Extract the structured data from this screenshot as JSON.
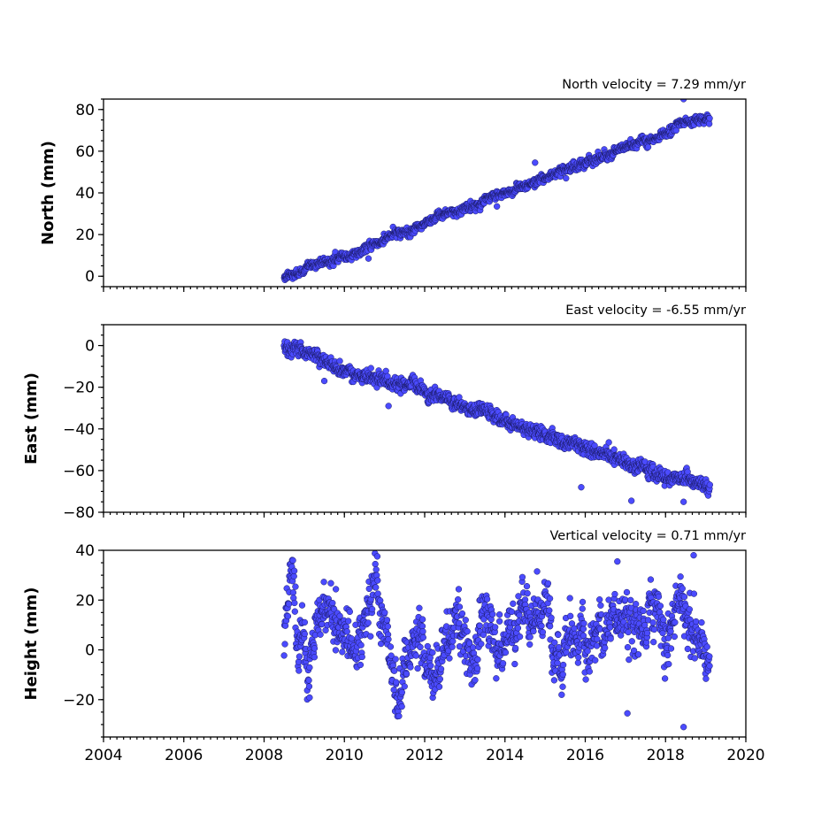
{
  "chart_data": [
    {
      "type": "scatter",
      "title": "North velocity = 7.29 mm/yr",
      "ylabel": "North (mm)",
      "xlim": [
        2004,
        2020
      ],
      "ylim": [
        -5,
        85
      ],
      "yticks": [
        0,
        20,
        40,
        60,
        80
      ],
      "ytick_labels": [
        "0",
        "20",
        "40",
        "60",
        "80"
      ],
      "grid": false,
      "marker_color": "#4b4bff",
      "series": [
        {
          "trend": {
            "x0": 2008.5,
            "y0": -0.5,
            "slope": 7.29
          },
          "x_range": [
            2008.5,
            2019.1
          ],
          "noise_sd": 1.4,
          "outliers": [
            [
              2018.45,
              85
            ],
            [
              2014.75,
              54.5
            ],
            [
              2013.8,
              33.5
            ],
            [
              2010.6,
              8.5
            ]
          ]
        }
      ]
    },
    {
      "type": "scatter",
      "title": "East velocity = -6.55 mm/yr",
      "ylabel": "East (mm)",
      "xlim": [
        2004,
        2020
      ],
      "ylim": [
        -80,
        10
      ],
      "yticks": [
        -80,
        -60,
        -40,
        -20,
        0
      ],
      "ytick_labels": [
        "−80",
        "−60",
        "−40",
        "−20",
        "0"
      ],
      "grid": false,
      "marker_color": "#4b4bff",
      "series": [
        {
          "trend": {
            "x0": 2008.5,
            "y0": 0,
            "slope": -6.55
          },
          "x_range": [
            2008.5,
            2019.1
          ],
          "noise_sd": 2.2,
          "outliers": [
            [
              2017.15,
              -74.5
            ],
            [
              2018.45,
              -75
            ],
            [
              2015.9,
              -68
            ],
            [
              2011.1,
              -29
            ],
            [
              2009.5,
              -17
            ]
          ]
        }
      ]
    },
    {
      "type": "scatter",
      "title": "Vertical velocity = 0.71 mm/yr",
      "ylabel": "Height (mm)",
      "xlim": [
        2004,
        2020
      ],
      "ylim": [
        -35,
        40
      ],
      "yticks": [
        -20,
        0,
        20,
        40
      ],
      "ytick_labels": [
        "−20",
        "0",
        "20",
        "40"
      ],
      "grid": false,
      "marker_color": "#4b4bff",
      "series": [
        {
          "trend": {
            "x0": 2008.5,
            "y0": 2,
            "slope": 0.71
          },
          "x_range": [
            2008.5,
            2019.1
          ],
          "noise_sd": 5.5,
          "outliers": [
            [
              2018.45,
              -31
            ],
            [
              2018.7,
              38
            ],
            [
              2017.05,
              -25.5
            ],
            [
              2016.8,
              35.5
            ],
            [
              2014.8,
              31.5
            ]
          ]
        }
      ]
    }
  ],
  "xticks": [
    2004,
    2006,
    2008,
    2010,
    2012,
    2014,
    2016,
    2018,
    2020
  ],
  "xtick_labels": [
    "2004",
    "2006",
    "2008",
    "2010",
    "2012",
    "2014",
    "2016",
    "2018",
    "2020"
  ]
}
